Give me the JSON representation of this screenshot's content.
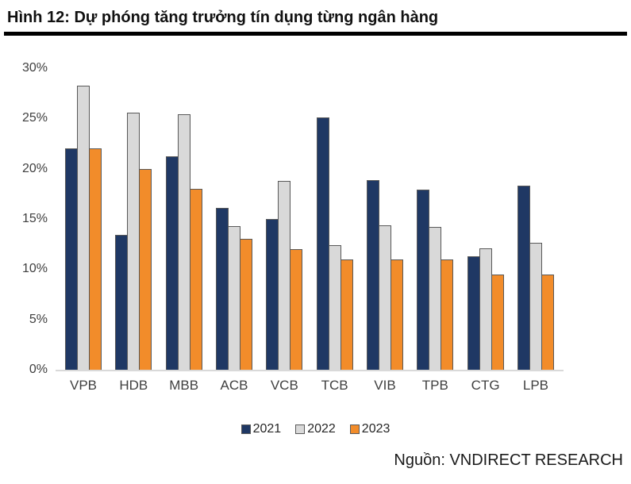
{
  "header": {
    "title": "Hình 12: Dự phóng tăng trưởng tín dụng từng ngân hàng"
  },
  "source": {
    "label": "Nguồn: VNDIRECT RESEARCH"
  },
  "colors": {
    "series_2021": "#1F3864",
    "series_2022": "#D9D9D9",
    "series_2023": "#F28C2A",
    "bar_border": "#595959",
    "axis_line": "#D9D9D9",
    "tick_text": "#3f3f3f",
    "title_rule": "#000000"
  },
  "chart_data": {
    "type": "bar",
    "title": "Dự phóng tăng trưởng tín dụng từng ngân hàng",
    "categories": [
      "VPB",
      "HDB",
      "MBB",
      "ACB",
      "VCB",
      "TCB",
      "VIB",
      "TPB",
      "CTG",
      "LPB"
    ],
    "series": [
      {
        "name": "2021",
        "color": "#1F3864",
        "values": [
          22.0,
          13.4,
          21.2,
          16.1,
          15.0,
          25.1,
          18.9,
          17.9,
          11.3,
          18.3
        ]
      },
      {
        "name": "2022",
        "color": "#D9D9D9",
        "values": [
          28.3,
          25.6,
          25.4,
          14.3,
          18.8,
          12.4,
          14.4,
          14.2,
          12.1,
          12.6
        ]
      },
      {
        "name": "2023",
        "color": "#F28C2A",
        "values": [
          22.0,
          20.0,
          18.0,
          13.0,
          12.0,
          11.0,
          11.0,
          11.0,
          9.5,
          9.5
        ]
      }
    ],
    "xlabel": "",
    "ylabel": "",
    "ylim": [
      0,
      30
    ],
    "yticks": [
      "0%",
      "5%",
      "10%",
      "15%",
      "20%",
      "25%",
      "30%"
    ],
    "grid": false,
    "legend_position": "bottom"
  }
}
